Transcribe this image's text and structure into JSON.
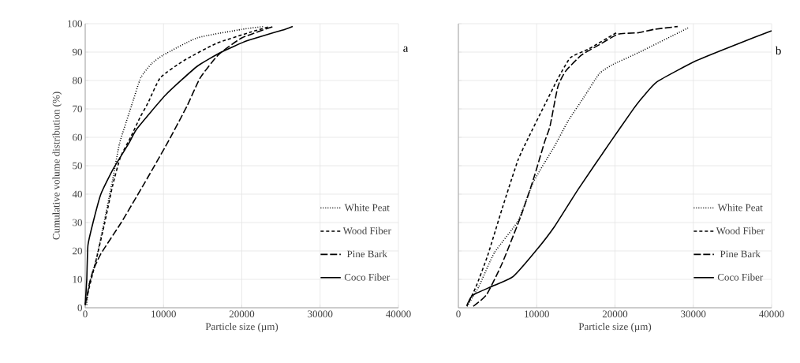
{
  "chart_data": [
    {
      "type": "line",
      "xlabel": "Particle size (µm)",
      "ylabel": "Cumulative volume distribution (%)",
      "annotations": [
        "a"
      ],
      "xlim": [
        0,
        40000
      ],
      "xticks": [
        0,
        10000,
        20000,
        30000,
        40000
      ],
      "ylim": [
        0,
        100
      ],
      "yticks": [
        0,
        10,
        20,
        30,
        40,
        50,
        60,
        70,
        80,
        90,
        100
      ],
      "grid": true,
      "legend": "bottom right",
      "series": [
        {
          "name": "White Peat",
          "color": "#000000",
          "line_style": "dotted",
          "x": [
            200,
            500,
            1400,
            2400,
            3500,
            4400,
            5900,
            7100,
            8500,
            10000,
            14300,
            20000,
            22800
          ],
          "values": [
            1,
            8,
            17,
            30,
            45,
            58,
            71,
            81,
            86,
            89,
            95,
            98,
            99
          ]
        },
        {
          "name": "Wood Fiber",
          "color": "#000000",
          "line_style": "dashed",
          "x": [
            0,
            500,
            1500,
            2500,
            3500,
            4500,
            5800,
            7000,
            8000,
            9600,
            12600,
            16700,
            21100,
            23600
          ],
          "values": [
            1,
            7,
            18,
            30,
            43,
            53,
            60,
            67,
            72,
            81,
            87,
            93,
            97,
            99
          ]
        },
        {
          "name": "Pine Bark",
          "color": "#000000",
          "line_style": "long dashed",
          "x": [
            0,
            500,
            1000,
            2000,
            4600,
            7600,
            10500,
            13000,
            14700,
            17000,
            20000,
            24000
          ],
          "values": [
            1,
            8,
            13,
            19,
            30,
            44,
            58,
            71,
            81,
            89,
            95,
            99
          ]
        },
        {
          "name": "Coco Fiber",
          "color": "#000000",
          "line_style": "solid",
          "x": [
            0,
            200,
            350,
            1000,
            2000,
            3600,
            5600,
            6600,
            10300,
            14300,
            17400,
            20700,
            25500,
            26500
          ],
          "values": [
            1,
            10,
            22,
            30,
            40,
            49,
            58,
            63,
            75,
            85,
            90,
            94,
            98,
            99
          ]
        }
      ]
    },
    {
      "type": "line",
      "xlabel": "Particle size (µm)",
      "annotations": [
        "b"
      ],
      "tick_labels": "x",
      "xlim": [
        0,
        40000
      ],
      "xticks": [
        0,
        10000,
        20000,
        30000,
        40000
      ],
      "ylim": [
        0,
        100
      ],
      "yticks": [
        0,
        10,
        20,
        30,
        40,
        50,
        60,
        70,
        80,
        90,
        100
      ],
      "grid": true,
      "legend": "bottom right",
      "series": [
        {
          "name": "White Peat",
          "color": "#000000",
          "line_style": "dotted",
          "x": [
            1100,
            2600,
            4600,
            7600,
            9600,
            12300,
            14000,
            16000,
            18000,
            19700,
            23000,
            29400
          ],
          "values": [
            0.5,
            7.4,
            19.4,
            30.5,
            44.4,
            57,
            65.7,
            74,
            82.4,
            85.6,
            89.8,
            98.6
          ]
        },
        {
          "name": "Wood Fiber",
          "color": "#000000",
          "line_style": "dashed",
          "x": [
            1070,
            2250,
            3750,
            5600,
            7600,
            9000,
            11000,
            12700,
            14300,
            16700,
            20300
          ],
          "values": [
            0.5,
            7.4,
            18.5,
            35,
            51.9,
            60.2,
            71.3,
            80.6,
            88,
            91.2,
            97
          ]
        },
        {
          "name": "Pine Bark",
          "color": "#000000",
          "line_style": "long dashed",
          "x": [
            1900,
            3600,
            5600,
            8000,
            9600,
            11000,
            11700,
            12700,
            13700,
            15700,
            18000,
            20400,
            23000,
            25000,
            28000
          ],
          "values": [
            0.5,
            4.6,
            15.7,
            32.4,
            45.4,
            58.3,
            63.9,
            77.8,
            83.3,
            88.9,
            92.6,
            96.3,
            96.8,
            98,
            99
          ]
        },
        {
          "name": "Coco Fiber",
          "color": "#000000",
          "line_style": "solid",
          "x": [
            1100,
            1600,
            2200,
            4600,
            7000,
            10000,
            12300,
            15300,
            19400,
            22100,
            23500,
            25400,
            30400,
            35400,
            40000
          ],
          "values": [
            1,
            3.7,
            5,
            7.9,
            11,
            20.4,
            28.7,
            41.7,
            58.3,
            69,
            74,
            79.6,
            87,
            92.6,
            97.5
          ]
        }
      ]
    }
  ]
}
